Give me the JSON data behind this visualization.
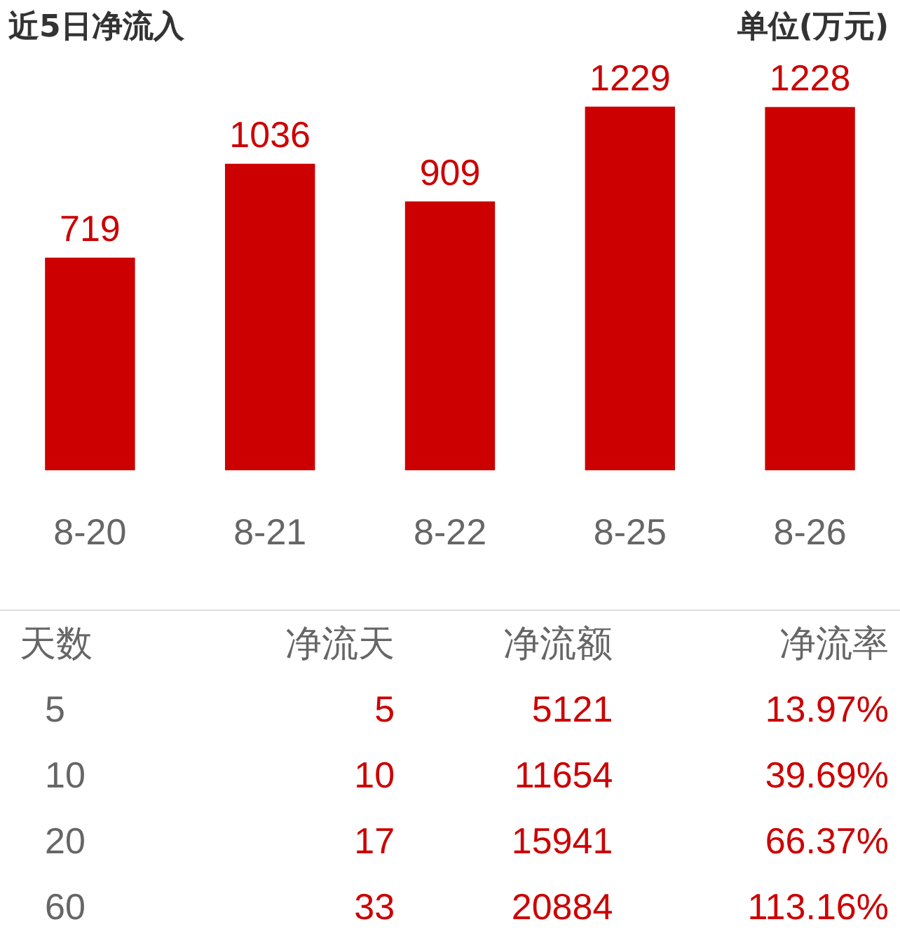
{
  "chart_data": [
    {
      "type": "bar",
      "title": "近5日净流入",
      "subtitle": "单位(万元)",
      "categories": [
        "8-20",
        "8-21",
        "8-22",
        "8-25",
        "8-26"
      ],
      "values": [
        719,
        1036,
        909,
        1229,
        1228
      ],
      "color": "#cc0000",
      "data_labels": true,
      "grid": false,
      "legend": false
    },
    {
      "type": "other",
      "xlabel": "天数",
      "data_labels": true,
      "categories": [
        "5",
        "10",
        "20",
        "60"
      ],
      "series": [
        {
          "name": "净流天",
          "values": [
            5,
            10,
            17,
            33
          ]
        },
        {
          "name": "净流额",
          "values": [
            5121,
            11654,
            15941,
            20884
          ]
        },
        {
          "name": "净流率",
          "values": [
            13.97,
            39.69,
            66.37,
            113.16
          ],
          "value_labels": [
            "13.97%",
            "39.69%",
            "66.37%",
            "113.16%"
          ]
        }
      ]
    }
  ]
}
